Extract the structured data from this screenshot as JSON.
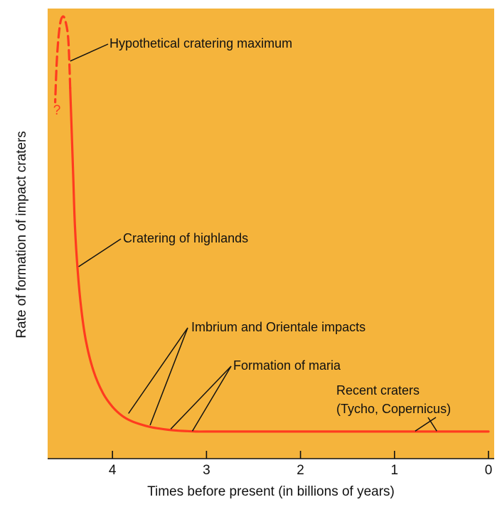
{
  "chart_data": {
    "type": "line",
    "title": "",
    "xlabel": "Times before present (in billions of years)",
    "ylabel": "Rate of formation of impact craters",
    "x_reversed": true,
    "xlim": [
      4.7,
      0
    ],
    "ylim": [
      0,
      1
    ],
    "xticks": [
      4,
      3,
      2,
      1,
      0
    ],
    "xtick_labels": [
      "4",
      "3",
      "2",
      "1",
      "0"
    ],
    "grid": false,
    "colors": {
      "background": "#f5b43c",
      "curve": "#ff3b1f",
      "question": "#ff3b1f",
      "axis": "#111111",
      "text": "#111111"
    },
    "series": [
      {
        "style": "dashed",
        "x": [
          4.45,
          4.47,
          4.5,
          4.53,
          4.56,
          4.59,
          4.61
        ],
        "y": [
          0.826,
          0.94,
          0.985,
          0.996,
          0.975,
          0.9,
          0.792
        ]
      },
      {
        "style": "solid",
        "x": [
          4.45,
          4.42,
          4.4,
          4.37,
          4.33,
          4.28,
          4.2,
          4.1,
          4.0,
          3.9,
          3.8,
          3.7,
          3.6,
          3.5,
          3.4,
          3.3,
          3.2,
          3.1,
          3.0,
          2.5,
          2.0,
          1.5,
          1.0,
          0.5,
          0.0
        ],
        "y": [
          0.826,
          0.63,
          0.5,
          0.39,
          0.295,
          0.22,
          0.15,
          0.098,
          0.066,
          0.045,
          0.032,
          0.024,
          0.018,
          0.014,
          0.011,
          0.009,
          0.008,
          0.007,
          0.007,
          0.007,
          0.007,
          0.007,
          0.007,
          0.007,
          0.007
        ]
      }
    ],
    "question_mark": "?",
    "annotations": [
      {
        "text": "Hypothetical cratering maximum",
        "points": [
          [
            4.45,
            0.89
          ]
        ]
      },
      {
        "text": "Cratering of highlands",
        "points": [
          [
            4.36,
            0.4
          ]
        ]
      },
      {
        "text": "Imbrium and Orientale impacts",
        "points": [
          [
            3.83,
            0.05
          ],
          [
            3.6,
            0.022
          ]
        ]
      },
      {
        "text": "Formation of maria",
        "points": [
          [
            3.38,
            0.013
          ],
          [
            3.15,
            0.008
          ]
        ]
      },
      {
        "text": "Recent craters\n(Tycho, Copernicus)",
        "points": [
          [
            0.78,
            0.008
          ],
          [
            0.55,
            0.008
          ]
        ]
      }
    ]
  }
}
